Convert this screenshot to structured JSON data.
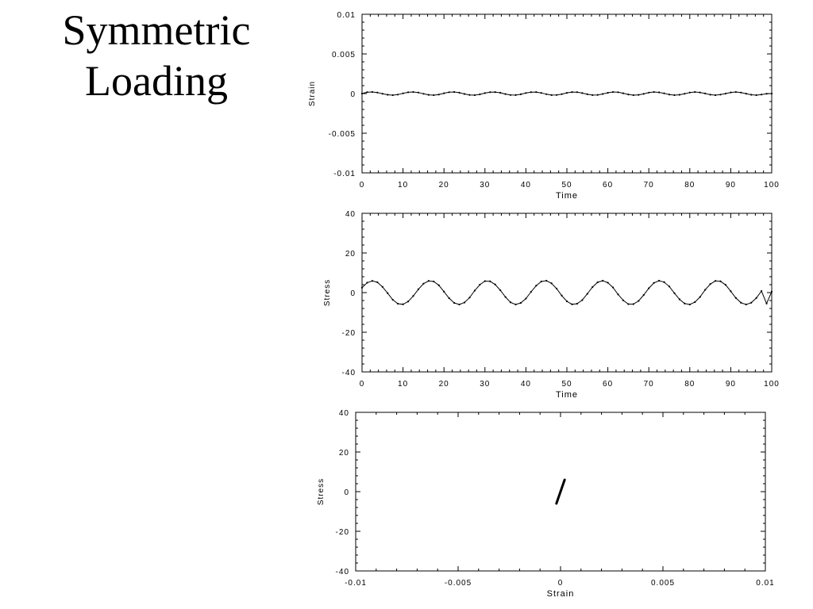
{
  "slide": {
    "title_line1": "Symmetric",
    "title_line2": "Loading"
  },
  "chart_data": [
    {
      "type": "line",
      "xlabel": "Time",
      "ylabel": "Strain",
      "xlim": [
        0,
        100
      ],
      "ylim": [
        -0.01,
        0.01
      ],
      "xticks": [
        0,
        10,
        20,
        30,
        40,
        50,
        60,
        70,
        80,
        90,
        100
      ],
      "yticks": [
        -0.01,
        -0.005,
        0,
        0.005,
        0.01
      ],
      "xtick_labels": [
        "0",
        "10",
        "20",
        "30",
        "40",
        "50",
        "60",
        "70",
        "80",
        "90",
        "100"
      ],
      "ytick_labels": [
        "-0.01",
        "-0.005",
        "0",
        "0.005",
        "0.01"
      ],
      "grid": false,
      "series": [
        {
          "x": [
            0,
            1.25,
            2.5,
            3.75,
            5,
            6.25,
            7.5,
            8.75,
            10,
            11.25,
            12.5,
            13.75,
            15,
            16.25,
            17.5,
            18.75,
            20,
            21.25,
            22.5,
            23.75,
            25,
            26.25,
            27.5,
            28.75,
            30,
            31.25,
            32.5,
            33.75,
            35,
            36.25,
            37.5,
            38.75,
            40,
            41.25,
            42.5,
            43.75,
            45,
            46.25,
            47.5,
            48.75,
            50,
            51.25,
            52.5,
            53.75,
            55,
            56.25,
            57.5,
            58.75,
            60,
            61.25,
            62.5,
            63.75,
            65,
            66.25,
            67.5,
            68.75,
            70,
            71.25,
            72.5,
            73.75,
            75,
            76.25,
            77.5,
            78.75,
            80,
            81.25,
            82.5,
            83.75,
            85,
            86.25,
            87.5,
            88.75,
            90,
            91.25,
            92.5,
            93.75,
            95,
            96.25,
            97.5,
            98.75,
            100
          ],
          "y": [
            0,
            0.00018,
            0.0002,
            0.00013,
            -2e-05,
            -0.00015,
            -0.0002,
            -0.00013,
            3e-05,
            0.00016,
            0.0002,
            0.00013,
            -3e-05,
            -0.00016,
            -0.0002,
            -0.00012,
            4e-05,
            0.00017,
            0.0002,
            0.00011,
            -5e-05,
            -0.00017,
            -0.0002,
            -0.0001,
            6e-05,
            0.00018,
            0.00019,
            0.0001,
            -6e-05,
            -0.00018,
            -0.00019,
            -9e-05,
            7e-05,
            0.00018,
            0.00019,
            8e-05,
            -8e-05,
            -0.00019,
            -0.00018,
            -7e-05,
            9e-05,
            0.00019,
            0.00018,
            6e-05,
            -9e-05,
            -0.00019,
            -0.00017,
            -5e-05,
            0.0001,
            0.0002,
            0.00017,
            4e-05,
            -0.00011,
            -0.0002,
            -0.00016,
            -4e-05,
            0.00012,
            0.0002,
            0.00015,
            3e-05,
            -0.00012,
            -0.0002,
            -0.00015,
            -2e-05,
            0.00013,
            0.0002,
            0.00014,
            1e-05,
            -0.00014,
            -0.0002,
            -0.00013,
            0,
            0.00014,
            0.0002,
            0.00013,
            -1e-05,
            -0.00015,
            -0.0002,
            -0.00012,
            -2e-05,
            0.0
          ]
        }
      ]
    },
    {
      "type": "line",
      "xlabel": "Time",
      "ylabel": "Stress",
      "xlim": [
        0,
        100
      ],
      "ylim": [
        -40,
        40
      ],
      "xticks": [
        0,
        10,
        20,
        30,
        40,
        50,
        60,
        70,
        80,
        90,
        100
      ],
      "yticks": [
        -40,
        -20,
        0,
        20,
        40
      ],
      "xtick_labels": [
        "0",
        "10",
        "20",
        "30",
        "40",
        "50",
        "60",
        "70",
        "80",
        "90",
        "100"
      ],
      "ytick_labels": [
        "-40",
        "-20",
        "0",
        "20",
        "40"
      ],
      "grid": false,
      "series": [
        {
          "x": [
            0,
            1.25,
            2.5,
            3.75,
            5,
            6.25,
            7.5,
            8.75,
            10,
            11.25,
            12.5,
            13.75,
            15,
            16.25,
            17.5,
            18.75,
            20,
            21.25,
            22.5,
            23.75,
            25,
            26.25,
            27.5,
            28.75,
            30,
            31.25,
            32.5,
            33.75,
            35,
            36.25,
            37.5,
            38.75,
            40,
            41.25,
            42.5,
            43.75,
            45,
            46.25,
            47.5,
            48.75,
            50,
            51.25,
            52.5,
            53.75,
            55,
            56.25,
            57.5,
            58.75,
            60,
            61.25,
            62.5,
            63.75,
            65,
            66.25,
            67.5,
            68.75,
            70,
            71.25,
            72.5,
            73.75,
            75,
            76.25,
            77.5,
            78.75,
            80,
            81.25,
            82.5,
            83.75,
            85,
            86.25,
            87.5,
            88.75,
            90,
            91.25,
            92.5,
            93.75,
            95,
            96.25,
            97.5,
            98.75,
            100
          ],
          "y": [
            2.5,
            5.0,
            5.9,
            5.2,
            2.9,
            -0.3,
            -3.6,
            -5.6,
            -5.9,
            -4.5,
            -1.7,
            1.7,
            4.5,
            5.9,
            5.6,
            3.7,
            0.5,
            -2.8,
            -5.2,
            -6.0,
            -5.0,
            -2.5,
            1.0,
            4.0,
            5.8,
            5.7,
            4.1,
            1.2,
            -2.2,
            -4.9,
            -6.0,
            -5.2,
            -3.0,
            0.4,
            3.5,
            5.6,
            6.0,
            4.7,
            2.0,
            -1.5,
            -4.4,
            -5.9,
            -5.6,
            -3.8,
            -0.6,
            2.8,
            5.2,
            6.0,
            5.0,
            2.6,
            -0.9,
            -3.9,
            -5.8,
            -5.8,
            -4.2,
            -1.2,
            2.2,
            4.9,
            6.0,
            5.3,
            3.1,
            -0.3,
            -3.4,
            -5.5,
            -6.0,
            -4.8,
            -2.2,
            1.4,
            4.3,
            5.9,
            5.7,
            3.9,
            0.7,
            -2.7,
            -5.1,
            -6.0,
            -5.1,
            -2.7,
            0.8,
            -5.5,
            0.5
          ]
        }
      ]
    },
    {
      "type": "line",
      "xlabel": "Strain",
      "ylabel": "Stress",
      "xlim": [
        -0.01,
        0.01
      ],
      "ylim": [
        -40,
        40
      ],
      "xticks": [
        -0.01,
        -0.005,
        0,
        0.005,
        0.01
      ],
      "yticks": [
        -40,
        -20,
        0,
        20,
        40
      ],
      "xtick_labels": [
        "-0.01",
        "-0.005",
        "0",
        "0.005",
        "0.01"
      ],
      "ytick_labels": [
        "-40",
        "-20",
        "0",
        "20",
        "40"
      ],
      "grid": false,
      "series": [
        {
          "x": [
            -0.0002,
            0.0002
          ],
          "y": [
            -6,
            6
          ]
        }
      ]
    }
  ]
}
